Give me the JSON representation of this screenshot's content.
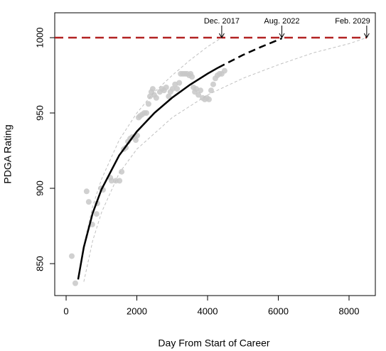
{
  "chart_data": {
    "type": "scatter",
    "x_label": "Day From Start of Career",
    "y_label": "PDGA Rating",
    "xlim": [
      -322,
      8744
    ],
    "ylim": [
      828.8,
      1016.5
    ],
    "xticks": [
      0,
      2000,
      4000,
      6000,
      8000
    ],
    "yticks": [
      850,
      900,
      950,
      1000
    ],
    "series": [
      {
        "kind": "points",
        "color": "#c8c8c8",
        "x": [
          160,
          260,
          580,
          640,
          740,
          860,
          880,
          985,
          1045,
          1250,
          1285,
          1405,
          1510,
          1570,
          1630,
          1690,
          1750,
          1810,
          1870,
          1930,
          1970,
          2010,
          2050,
          2090,
          2150,
          2210,
          2270,
          2330,
          2370,
          2410,
          2450,
          2490,
          2550,
          2650,
          2710,
          2770,
          2830,
          2900,
          2950,
          3010,
          3080,
          3140,
          3200,
          3240,
          3300,
          3360,
          3420,
          3480,
          3520,
          3560,
          3600,
          3640,
          3680,
          3740,
          3800,
          3860,
          3920,
          3980,
          4040,
          4100,
          4160,
          4220,
          4280,
          4340,
          4400,
          4480
        ],
        "values": [
          855,
          837,
          898,
          891,
          876,
          883,
          890,
          900,
          899,
          907,
          905,
          905,
          905,
          911,
          926,
          927,
          931,
          933,
          934,
          934,
          932,
          935,
          947,
          948,
          949,
          950,
          950,
          956,
          961,
          964,
          966,
          962,
          960,
          964,
          966,
          965,
          967,
          961,
          964,
          966,
          969,
          966,
          970,
          976,
          976,
          976,
          976,
          975,
          976,
          974,
          967,
          964,
          966,
          962,
          965,
          960,
          959,
          960,
          959,
          965,
          969,
          973,
          975,
          976,
          976,
          978
        ]
      },
      {
        "kind": "line",
        "color": "#c0c0c0",
        "line_style": "dashed",
        "x": [
          400,
          500,
          750,
          1000,
          1500,
          2000,
          2500,
          3000,
          3500,
          4000,
          4400
        ],
        "values": [
          848,
          862,
          888,
          906,
          932,
          950,
          964,
          975,
          985,
          994,
          1000
        ]
      },
      {
        "kind": "line",
        "color": "#c0c0c0",
        "line_style": "dashed",
        "x": [
          500,
          750,
          1000,
          1500,
          2000,
          3000,
          4000,
          5000,
          6000,
          7000,
          8000,
          8500
        ],
        "values": [
          838,
          865,
          884,
          910,
          926,
          947,
          962,
          973,
          982,
          990,
          996,
          1000
        ]
      },
      {
        "kind": "line",
        "color": "#000000",
        "line_style": "solid",
        "x": [
          340,
          500,
          750,
          1000,
          1500,
          2000,
          2500,
          3000,
          3500,
          4000,
          4300
        ],
        "values": [
          839.5,
          860.9,
          883.4,
          899.3,
          921.8,
          937.7,
          950.1,
          960.2,
          968.7,
          976.1,
          980.1
        ]
      },
      {
        "kind": "line",
        "color": "#000000",
        "line_style": "dashed",
        "x": [
          4300,
          5000,
          5500,
          6100
        ],
        "values": [
          980.1,
          988.5,
          993.7,
          999.5
        ]
      }
    ],
    "reference_line": {
      "y": 1000,
      "x_end": 8500,
      "color": "#b22222"
    },
    "annotations": [
      {
        "text": "Dec. 2017",
        "x": 4400,
        "y": 1000
      },
      {
        "text": "Aug. 2022",
        "x": 6100,
        "y": 1000
      },
      {
        "text": "Feb. 2029",
        "x": 8500,
        "y": 1000
      }
    ]
  }
}
